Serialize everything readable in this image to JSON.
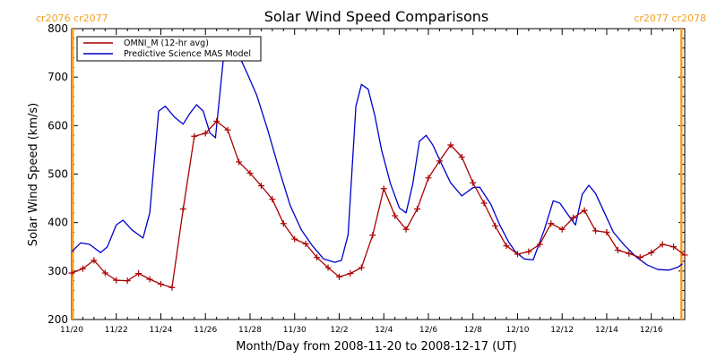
{
  "chart_data": {
    "type": "line",
    "title": "Solar Wind Speed Comparisons",
    "xlabel": "Month/Day from 2008-11-20 to 2008-12-17 (UT)",
    "ylabel": "Solar Wind Speed (km/s)",
    "xlim": [
      0,
      27.5
    ],
    "ylim": [
      200,
      800
    ],
    "yticks": [
      200,
      300,
      400,
      500,
      600,
      700,
      800
    ],
    "xticks": [
      {
        "x": 0,
        "label": "11/20"
      },
      {
        "x": 2,
        "label": "11/22"
      },
      {
        "x": 4,
        "label": "11/24"
      },
      {
        "x": 6,
        "label": "11/26"
      },
      {
        "x": 8,
        "label": "11/28"
      },
      {
        "x": 10,
        "label": "11/30"
      },
      {
        "x": 12,
        "label": "12/2"
      },
      {
        "x": 14,
        "label": "12/4"
      },
      {
        "x": 16,
        "label": "12/6"
      },
      {
        "x": 18,
        "label": "12/8"
      },
      {
        "x": 20,
        "label": "12/10"
      },
      {
        "x": 22,
        "label": "12/12"
      },
      {
        "x": 24,
        "label": "12/14"
      },
      {
        "x": 26,
        "label": "12/16"
      }
    ],
    "carrington_markers": [
      {
        "x": 0.05,
        "label": "cr2076 cr2077",
        "side": "left",
        "color": "#f5a020"
      },
      {
        "x": 27.35,
        "label": "cr2077 cr2078",
        "side": "right",
        "color": "#f5a020"
      }
    ],
    "legend_position": "top-left",
    "series": [
      {
        "name": "OMNI_M (12-hr avg)",
        "color": "#aa0000",
        "marker": "plus",
        "x": [
          0,
          0.5,
          1,
          1.5,
          2,
          2.5,
          3,
          3.5,
          4,
          4.5,
          5,
          5.5,
          6,
          6.5,
          7,
          7.5,
          8,
          8.5,
          9,
          9.5,
          10,
          10.5,
          11,
          11.5,
          12,
          12.5,
          13,
          13.5,
          14,
          14.5,
          15,
          15.5,
          16,
          16.5,
          17,
          17.5,
          18,
          18.5,
          19,
          19.5,
          20,
          20.5,
          21,
          21.5,
          22,
          22.5,
          23,
          23.5,
          24,
          24.5,
          25,
          25.5,
          26,
          26.5,
          27,
          27.5
        ],
        "y": [
          296,
          305,
          322,
          296,
          281,
          280,
          295,
          283,
          273,
          266,
          428,
          578,
          584,
          609,
          591,
          525,
          502,
          476,
          448,
          398,
          366,
          356,
          328,
          307,
          288,
          295,
          307,
          374,
          470,
          414,
          386,
          428,
          492,
          527,
          560,
          535,
          482,
          440,
          393,
          352,
          335,
          340,
          355,
          398,
          386,
          410,
          425,
          383,
          380,
          343,
          336,
          328,
          338,
          355,
          350,
          333
        ]
      },
      {
        "name": "Predictive Science MAS Model",
        "color": "#0000cc",
        "marker": "none",
        "x": [
          0,
          0.4,
          0.8,
          1.3,
          1.6,
          2,
          2.3,
          2.7,
          3.2,
          3.5,
          3.9,
          4.2,
          4.6,
          5,
          5.3,
          5.6,
          5.9,
          6.2,
          6.45,
          6.8,
          7.2,
          7.6,
          7.9,
          8.3,
          8.8,
          9.3,
          9.8,
          10.3,
          10.8,
          11.3,
          11.8,
          12.1,
          12.4,
          12.75,
          13,
          13.3,
          13.6,
          13.9,
          14.3,
          14.7,
          15,
          15.3,
          15.6,
          15.9,
          16.2,
          16.6,
          17,
          17.5,
          18,
          18.3,
          18.8,
          19.2,
          19.6,
          19.9,
          20.3,
          20.7,
          21.2,
          21.6,
          21.9,
          22.2,
          22.6,
          22.9,
          23.2,
          23.5,
          23.9,
          24.3,
          24.8,
          25.3,
          25.8,
          26.3,
          26.8,
          27.2,
          27.4
        ],
        "y": [
          340,
          358,
          355,
          338,
          350,
          395,
          405,
          385,
          368,
          420,
          630,
          640,
          618,
          603,
          625,
          643,
          630,
          585,
          575,
          735,
          748,
          735,
          705,
          663,
          590,
          510,
          435,
          385,
          352,
          325,
          318,
          322,
          375,
          640,
          685,
          675,
          620,
          550,
          480,
          430,
          420,
          480,
          568,
          580,
          560,
          520,
          482,
          455,
          472,
          473,
          438,
          395,
          360,
          340,
          325,
          323,
          385,
          445,
          440,
          420,
          395,
          458,
          477,
          460,
          420,
          380,
          353,
          330,
          313,
          303,
          302,
          308,
          315
        ]
      }
    ]
  }
}
